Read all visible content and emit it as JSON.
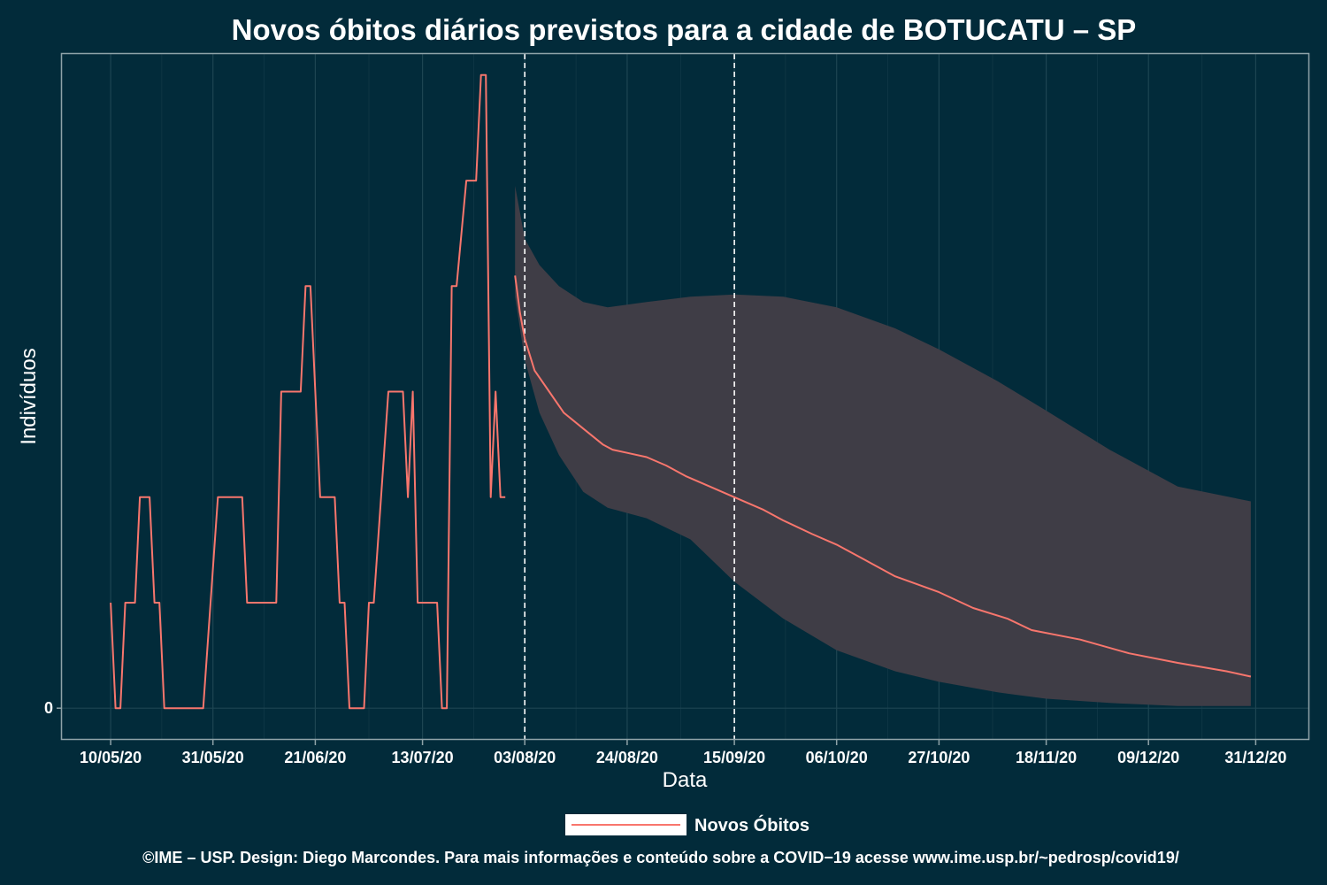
{
  "chart_data": {
    "type": "line",
    "title": "Novos óbitos diários previstos para a cidade de BOTUCATU – SP",
    "xlabel": "Data",
    "ylabel": "Indivíduos",
    "x_tick_labels": [
      "10/05/20",
      "31/05/20",
      "21/06/20",
      "13/07/20",
      "03/08/20",
      "24/08/20",
      "15/09/20",
      "06/10/20",
      "27/10/20",
      "18/11/20",
      "09/12/20",
      "31/12/20"
    ],
    "y_tick_labels": [
      "0"
    ],
    "xlim": [
      "2020-04-30",
      "2021-01-11"
    ],
    "ylim": [
      -0.3,
      6.2
    ],
    "vertical_reference_lines": [
      "2020-08-03",
      "2020-09-15"
    ],
    "grid": true,
    "legend_position": "bottom",
    "legend": [
      {
        "label": "Novos Óbitos",
        "color": "#f8766d"
      }
    ],
    "colors": {
      "background": "#022b3a",
      "line": "#f8766d",
      "band": "#3f3d46",
      "axis": "#8fa3a8",
      "grid": "#1d4552"
    },
    "series": [
      {
        "name": "Novos Óbitos",
        "points": [
          [
            "2020-05-10",
            1
          ],
          [
            "2020-05-11",
            0
          ],
          [
            "2020-05-12",
            0
          ],
          [
            "2020-05-13",
            1
          ],
          [
            "2020-05-15",
            1
          ],
          [
            "2020-05-16",
            2
          ],
          [
            "2020-05-18",
            2
          ],
          [
            "2020-05-19",
            1
          ],
          [
            "2020-05-20",
            1
          ],
          [
            "2020-05-21",
            0
          ],
          [
            "2020-05-29",
            0
          ],
          [
            "2020-06-01",
            2
          ],
          [
            "2020-06-06",
            2
          ],
          [
            "2020-06-07",
            1
          ],
          [
            "2020-06-13",
            1
          ],
          [
            "2020-06-14",
            3
          ],
          [
            "2020-06-18",
            3
          ],
          [
            "2020-06-19",
            4
          ],
          [
            "2020-06-20",
            4
          ],
          [
            "2020-06-22",
            2
          ],
          [
            "2020-06-25",
            2
          ],
          [
            "2020-06-26",
            1
          ],
          [
            "2020-06-27",
            1
          ],
          [
            "2020-06-28",
            0
          ],
          [
            "2020-07-01",
            0
          ],
          [
            "2020-07-02",
            1
          ],
          [
            "2020-07-03",
            1
          ],
          [
            "2020-07-06",
            3
          ],
          [
            "2020-07-09",
            3
          ],
          [
            "2020-07-10",
            2
          ],
          [
            "2020-07-11",
            3
          ],
          [
            "2020-07-12",
            1
          ],
          [
            "2020-07-16",
            1
          ],
          [
            "2020-07-17",
            0
          ],
          [
            "2020-07-18",
            0
          ],
          [
            "2020-07-19",
            4
          ],
          [
            "2020-07-20",
            4
          ],
          [
            "2020-07-22",
            5
          ],
          [
            "2020-07-24",
            5
          ],
          [
            "2020-07-25",
            6
          ],
          [
            "2020-07-26",
            6
          ],
          [
            "2020-07-27",
            2
          ],
          [
            "2020-07-28",
            3
          ],
          [
            "2020-07-29",
            2
          ],
          [
            "2020-07-30",
            2
          ]
        ]
      },
      {
        "name": "",
        "points": [
          [
            "2020-08-01",
            4.1
          ],
          [
            "2020-08-02",
            3.75
          ],
          [
            "2020-08-03",
            3.5
          ],
          [
            "2020-08-05",
            3.2
          ],
          [
            "2020-08-08",
            3.0
          ],
          [
            "2020-08-11",
            2.8
          ],
          [
            "2020-08-15",
            2.65
          ],
          [
            "2020-08-19",
            2.5
          ],
          [
            "2020-08-21",
            2.45
          ],
          [
            "2020-08-24",
            2.42
          ],
          [
            "2020-08-28",
            2.38
          ],
          [
            "2020-09-01",
            2.3
          ],
          [
            "2020-09-05",
            2.2
          ],
          [
            "2020-09-10",
            2.1
          ],
          [
            "2020-09-15",
            2.0
          ],
          [
            "2020-09-21",
            1.88
          ],
          [
            "2020-09-25",
            1.78
          ],
          [
            "2020-10-01",
            1.65
          ],
          [
            "2020-10-06",
            1.55
          ],
          [
            "2020-10-12",
            1.4
          ],
          [
            "2020-10-18",
            1.25
          ],
          [
            "2020-10-27",
            1.1
          ],
          [
            "2020-11-03",
            0.95
          ],
          [
            "2020-11-10",
            0.85
          ],
          [
            "2020-11-15",
            0.74
          ],
          [
            "2020-11-25",
            0.65
          ],
          [
            "2020-12-05",
            0.52
          ],
          [
            "2020-12-15",
            0.43
          ],
          [
            "2020-12-25",
            0.35
          ],
          [
            "2020-12-30",
            0.3
          ]
        ]
      }
    ],
    "confidence_band": {
      "x": [
        "2020-08-01",
        "2020-08-03",
        "2020-08-06",
        "2020-08-10",
        "2020-08-15",
        "2020-08-20",
        "2020-08-28",
        "2020-09-06",
        "2020-09-15",
        "2020-09-25",
        "2020-10-06",
        "2020-10-18",
        "2020-10-27",
        "2020-11-08",
        "2020-11-18",
        "2020-12-01",
        "2020-12-15",
        "2020-12-30"
      ],
      "upper": [
        4.95,
        4.45,
        4.2,
        4.0,
        3.85,
        3.8,
        3.85,
        3.9,
        3.92,
        3.9,
        3.8,
        3.6,
        3.4,
        3.1,
        2.82,
        2.45,
        2.1,
        1.96
      ],
      "lower": [
        3.9,
        3.3,
        2.8,
        2.4,
        2.05,
        1.9,
        1.8,
        1.6,
        1.2,
        0.85,
        0.55,
        0.35,
        0.25,
        0.15,
        0.09,
        0.05,
        0.02,
        0.02
      ]
    }
  },
  "legend": {
    "label": "Novos Óbitos"
  },
  "caption": "©IME – USP. Design: Diego Marcondes. Para mais informações e conteúdo sobre a COVID−19 acesse www.ime.usp.br/~pedrosp/covid19/"
}
